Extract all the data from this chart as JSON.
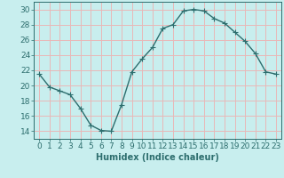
{
  "x": [
    0,
    1,
    2,
    3,
    4,
    5,
    6,
    7,
    8,
    9,
    10,
    11,
    12,
    13,
    14,
    15,
    16,
    17,
    18,
    19,
    20,
    21,
    22,
    23
  ],
  "y": [
    21.5,
    19.8,
    19.3,
    18.8,
    17.0,
    14.8,
    14.1,
    14.0,
    17.5,
    21.8,
    23.5,
    25.0,
    27.5,
    28.0,
    29.8,
    30.0,
    29.8,
    28.8,
    28.2,
    27.0,
    25.8,
    24.2,
    21.8,
    21.5
  ],
  "line_color": "#2d6e6e",
  "marker": "+",
  "marker_size": 4,
  "bg_color": "#c8eeee",
  "grid_color": "#e8b8b8",
  "axis_color": "#2d6e6e",
  "xlabel": "Humidex (Indice chaleur)",
  "ylim": [
    13,
    31
  ],
  "xlim": [
    -0.5,
    23.5
  ],
  "yticks": [
    14,
    16,
    18,
    20,
    22,
    24,
    26,
    28,
    30
  ],
  "xticks": [
    0,
    1,
    2,
    3,
    4,
    5,
    6,
    7,
    8,
    9,
    10,
    11,
    12,
    13,
    14,
    15,
    16,
    17,
    18,
    19,
    20,
    21,
    22,
    23
  ],
  "xlabel_fontsize": 7,
  "tick_fontsize": 6.5,
  "linewidth": 1.0,
  "markeredgewidth": 0.8
}
